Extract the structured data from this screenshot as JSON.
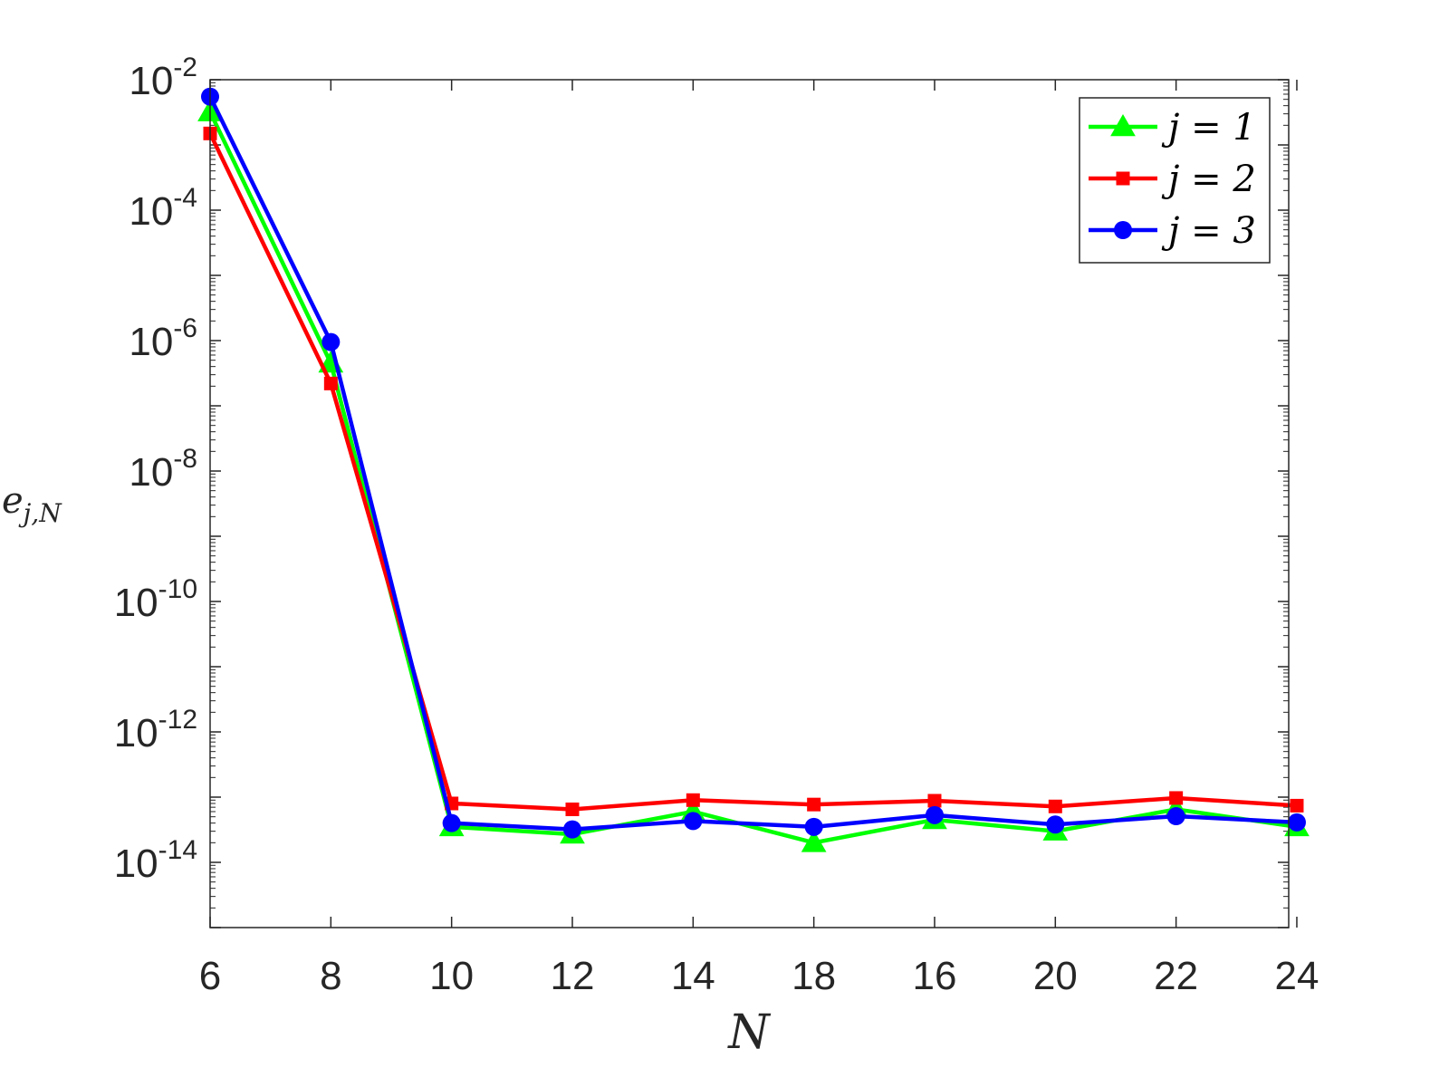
{
  "chart_data": {
    "type": "line",
    "yscale": "log",
    "categories": [
      "6",
      "8",
      "10",
      "12",
      "14",
      "18",
      "16",
      "20",
      "22",
      "24"
    ],
    "ylim": [
      1e-15,
      0.01
    ],
    "yticks": [
      {
        "base": "10",
        "exp": "-2",
        "value": 0.01
      },
      {
        "base": "10",
        "exp": "-4",
        "value": 0.0001
      },
      {
        "base": "10",
        "exp": "-6",
        "value": 1e-06
      },
      {
        "base": "10",
        "exp": "-8",
        "value": 1e-08
      },
      {
        "base": "10",
        "exp": "-10",
        "value": 1e-10
      },
      {
        "base": "10",
        "exp": "-12",
        "value": 1e-12
      },
      {
        "base": "10",
        "exp": "-14",
        "value": 1e-14
      }
    ],
    "xlabel": "N",
    "ylabel": {
      "main": "e",
      "sub": "j,N"
    },
    "legend_position": "top-right",
    "series": [
      {
        "name": "j = 1",
        "color": "#00ff00",
        "marker": "triangle",
        "values": [
          0.0032,
          4.5e-07,
          3.5e-14,
          2.7e-14,
          6e-14,
          2e-14,
          4.5e-14,
          3e-14,
          6.5e-14,
          3.5e-14
        ]
      },
      {
        "name": "j = 2",
        "color": "#ff0000",
        "marker": "square",
        "values": [
          0.0015,
          2.2e-07,
          8e-14,
          6.5e-14,
          9e-14,
          7.7e-14,
          8.8e-14,
          7.2e-14,
          9.7e-14,
          7.4e-14
        ]
      },
      {
        "name": "j = 3",
        "color": "#0000ff",
        "marker": "circle",
        "values": [
          0.0055,
          9.5e-07,
          4e-14,
          3.2e-14,
          4.3e-14,
          3.5e-14,
          5.3e-14,
          3.8e-14,
          5.1e-14,
          4.1e-14
        ]
      }
    ]
  }
}
